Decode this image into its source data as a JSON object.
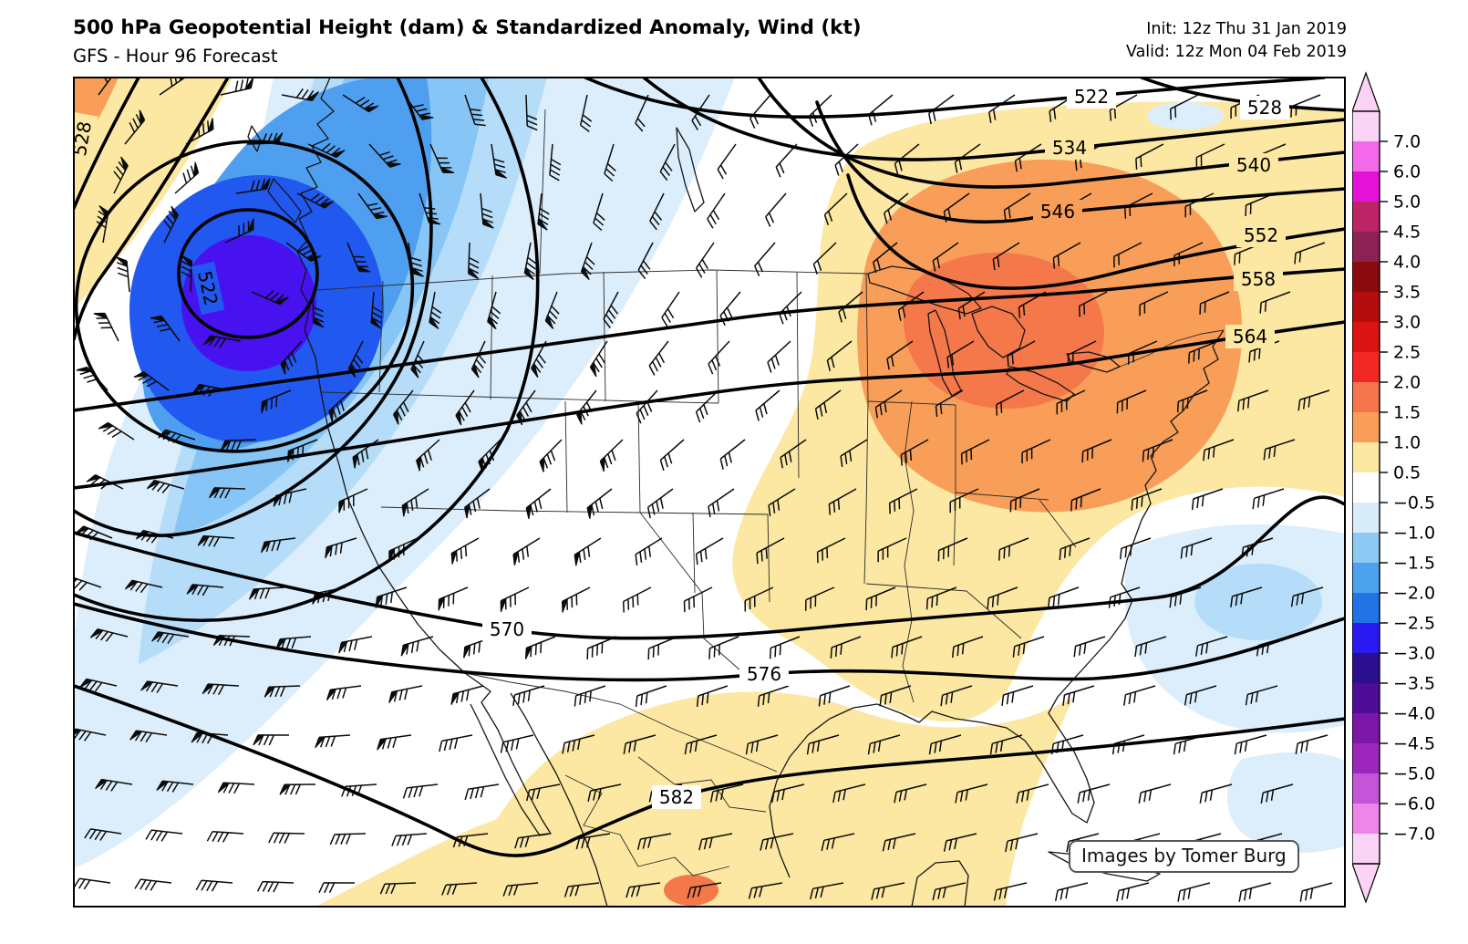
{
  "header": {
    "title": "500 hPa Geopotential Height (dam) & Standardized Anomaly, Wind (kt)",
    "subtitle": "GFS - Hour 96 Forecast",
    "init_line": "Init: 12z Thu 31 Jan 2019",
    "valid_line": "Valid: 12z Mon 04 Feb 2019"
  },
  "credit": "Images by Tomer Burg",
  "chart_data": {
    "type": "heatmap",
    "title": "500 hPa Geopotential Height (dam) & Standardized Anomaly, Wind (kt)",
    "model_run": {
      "model": "GFS",
      "forecast_hour": 96,
      "init": "12z Thu 31 Jan 2019",
      "valid": "12z Mon 04 Feb 2019"
    },
    "variables": {
      "height_units": "dam",
      "anomaly_units": "standardized anomaly (sigma)",
      "wind_units": "kt"
    },
    "height_contours": {
      "interval_dam": 6,
      "labels": [
        "522",
        "528",
        "534",
        "540",
        "546",
        "552",
        "558",
        "564",
        "570",
        "576",
        "582"
      ]
    },
    "anomaly_colorbar": {
      "tick_labels": [
        "7.0",
        "6.0",
        "5.0",
        "4.5",
        "4.0",
        "3.5",
        "3.0",
        "2.5",
        "2.0",
        "1.5",
        "1.0",
        "0.5",
        "−0.5",
        "−1.0",
        "−1.5",
        "−2.0",
        "−2.5",
        "−3.0",
        "−3.5",
        "−4.0",
        "−4.5",
        "−5.0",
        "−6.0",
        "−7.0"
      ],
      "band_colors_top_to_bottom": [
        "#fbd3f6",
        "#f469ea",
        "#e312d6",
        "#bc2465",
        "#8e2154",
        "#8a0b0e",
        "#b30d0e",
        "#dc1313",
        "#f42727",
        "#f4744d",
        "#f89e59",
        "#fce8a2",
        "#ffffff",
        "#d9ecfa",
        "#8ec9f3",
        "#4da2ee",
        "#2173e6",
        "#2a1af2",
        "#2c0f8e",
        "#4d0d96",
        "#7a17a8",
        "#9d27bd",
        "#c455d8",
        "#ee85e9",
        "#fbd3f6"
      ]
    },
    "palette": {
      "white": "#ffffff",
      "pos1": "#fce8a2",
      "pos2": "#f89e59",
      "pos3": "#f4784a",
      "neg1": "#dceefb",
      "neg2": "#b5dcf8",
      "neg3": "#86c5f5",
      "neg4": "#4f9ff0",
      "neg5": "#2158ef",
      "neg6": "#4711f0"
    },
    "features": [
      {
        "label": "deep negative height anomaly (about −3 sigma), closed 522 dam low",
        "region": "Pacific Northwest / British Columbia coast"
      },
      {
        "label": "positive height anomaly (about +1.5 to +2 sigma) ridge",
        "region": "Great Lakes / Northeast US"
      }
    ],
    "wind_symbols": "wind barbs (kt) plotted across the model grid"
  }
}
